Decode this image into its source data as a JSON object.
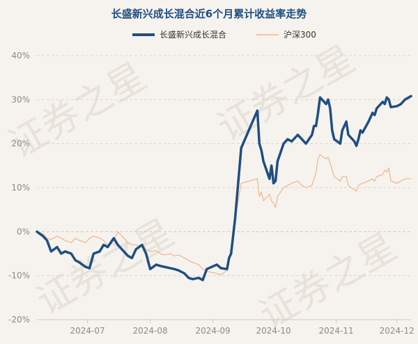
{
  "chart_data": {
    "type": "line",
    "title": "长盛新兴成长混合近6个月累计收益率走势",
    "watermark": "证券之星",
    "ylim": [
      -20,
      40
    ],
    "yticks": [
      -20,
      -10,
      0,
      10,
      20,
      30,
      40
    ],
    "ytick_labels": [
      "-20%",
      "-10%",
      "0%",
      "10%",
      "20%",
      "30%",
      "40%"
    ],
    "xlim": [
      "2024-06-21",
      "2024-12-23"
    ],
    "xticks": [
      "2024-07",
      "2024-08",
      "2024-09",
      "2024-10",
      "2024-11",
      "2024-12"
    ],
    "grid": true,
    "legend": "top",
    "series": [
      {
        "name": "长盛新兴成长混合",
        "color": "#1f4e82",
        "width": 3.5,
        "points": [
          [
            "2024-06-21",
            0
          ],
          [
            "2024-06-24",
            -1
          ],
          [
            "2024-06-26",
            -2
          ],
          [
            "2024-06-28",
            -4.5
          ],
          [
            "2024-07-01",
            -3.5
          ],
          [
            "2024-07-03",
            -5
          ],
          [
            "2024-07-05",
            -4.5
          ],
          [
            "2024-07-08",
            -5
          ],
          [
            "2024-07-10",
            -6.5
          ],
          [
            "2024-07-12",
            -7
          ],
          [
            "2024-07-15",
            -8
          ],
          [
            "2024-07-17",
            -8.3
          ],
          [
            "2024-07-19",
            -5
          ],
          [
            "2024-07-22",
            -4.5
          ],
          [
            "2024-07-24",
            -3
          ],
          [
            "2024-07-26",
            -3.5
          ],
          [
            "2024-07-29",
            -1.5
          ],
          [
            "2024-07-31",
            -3
          ],
          [
            "2024-08-02",
            -4
          ],
          [
            "2024-08-05",
            -5.5
          ],
          [
            "2024-08-07",
            -6
          ],
          [
            "2024-08-09",
            -4
          ],
          [
            "2024-08-12",
            -3
          ],
          [
            "2024-08-14",
            -5
          ],
          [
            "2024-08-16",
            -8.5
          ],
          [
            "2024-08-19",
            -7.5
          ],
          [
            "2024-08-21",
            -7.8
          ],
          [
            "2024-08-23",
            -8
          ],
          [
            "2024-08-26",
            -8.3
          ],
          [
            "2024-08-28",
            -8.5
          ],
          [
            "2024-08-30",
            -8.8
          ],
          [
            "2024-09-02",
            -9.5
          ],
          [
            "2024-09-04",
            -10.5
          ],
          [
            "2024-09-06",
            -10.8
          ],
          [
            "2024-09-09",
            -10.5
          ],
          [
            "2024-09-11",
            -11
          ],
          [
            "2024-09-13",
            -8.5
          ],
          [
            "2024-09-18",
            -7.5
          ],
          [
            "2024-09-20",
            -8.3
          ],
          [
            "2024-09-23",
            -8.5
          ],
          [
            "2024-09-24",
            -6
          ],
          [
            "2024-09-25",
            -5
          ],
          [
            "2024-09-26",
            -1
          ],
          [
            "2024-09-27",
            3
          ],
          [
            "2024-09-30",
            19
          ],
          [
            "2024-10-08",
            27.5
          ],
          [
            "2024-10-09",
            20
          ],
          [
            "2024-10-10",
            18.5
          ],
          [
            "2024-10-11",
            16
          ],
          [
            "2024-10-14",
            12
          ],
          [
            "2024-10-15",
            15
          ],
          [
            "2024-10-16",
            11
          ],
          [
            "2024-10-17",
            11.5
          ],
          [
            "2024-10-18",
            16
          ],
          [
            "2024-10-21",
            20
          ],
          [
            "2024-10-23",
            21
          ],
          [
            "2024-10-25",
            20.5
          ],
          [
            "2024-10-28",
            22
          ],
          [
            "2024-10-30",
            21
          ],
          [
            "2024-11-01",
            20
          ],
          [
            "2024-11-04",
            22
          ],
          [
            "2024-11-05",
            24
          ],
          [
            "2024-11-06",
            24
          ],
          [
            "2024-11-07",
            27
          ],
          [
            "2024-11-08",
            30.5
          ],
          [
            "2024-11-11",
            29
          ],
          [
            "2024-11-12",
            30
          ],
          [
            "2024-11-13",
            28
          ],
          [
            "2024-11-14",
            23
          ],
          [
            "2024-11-15",
            21
          ],
          [
            "2024-11-18",
            20
          ],
          [
            "2024-11-19",
            23
          ],
          [
            "2024-11-21",
            25
          ],
          [
            "2024-11-22",
            22
          ],
          [
            "2024-11-25",
            20.5
          ],
          [
            "2024-11-26",
            19.5
          ],
          [
            "2024-11-27",
            21
          ],
          [
            "2024-11-28",
            23
          ],
          [
            "2024-11-29",
            22.5
          ],
          [
            "2024-12-02",
            25
          ],
          [
            "2024-12-04",
            27
          ],
          [
            "2024-12-05",
            26.5
          ],
          [
            "2024-12-06",
            28
          ],
          [
            "2024-12-09",
            29.5
          ],
          [
            "2024-12-10",
            29
          ],
          [
            "2024-12-11",
            30.5
          ],
          [
            "2024-12-12",
            30
          ],
          [
            "2024-12-13",
            28.3
          ],
          [
            "2024-12-16",
            28.5
          ],
          [
            "2024-12-18",
            29
          ],
          [
            "2024-12-20",
            30
          ],
          [
            "2024-12-23",
            30.8
          ]
        ]
      },
      {
        "name": "沪深300",
        "color": "#f2b48a",
        "width": 1.2,
        "points": [
          [
            "2024-06-21",
            0
          ],
          [
            "2024-06-24",
            -0.5
          ],
          [
            "2024-06-26",
            -1.5
          ],
          [
            "2024-06-28",
            -1.8
          ],
          [
            "2024-07-01",
            -1
          ],
          [
            "2024-07-03",
            -1.5
          ],
          [
            "2024-07-05",
            -2
          ],
          [
            "2024-07-08",
            -2.5
          ],
          [
            "2024-07-10",
            -1.5
          ],
          [
            "2024-07-12",
            -2
          ],
          [
            "2024-07-15",
            -2.5
          ],
          [
            "2024-07-17",
            -1.5
          ],
          [
            "2024-07-19",
            -1
          ],
          [
            "2024-07-22",
            -1.5
          ],
          [
            "2024-07-24",
            -2
          ],
          [
            "2024-07-26",
            -3
          ],
          [
            "2024-07-29",
            -2
          ],
          [
            "2024-07-31",
            0
          ],
          [
            "2024-08-02",
            -1
          ],
          [
            "2024-08-05",
            -2.5
          ],
          [
            "2024-08-07",
            -3
          ],
          [
            "2024-08-09",
            -3
          ],
          [
            "2024-08-12",
            -3.5
          ],
          [
            "2024-08-14",
            -4
          ],
          [
            "2024-08-16",
            -4.5
          ],
          [
            "2024-08-19",
            -4.3
          ],
          [
            "2024-08-21",
            -5
          ],
          [
            "2024-08-23",
            -5.3
          ],
          [
            "2024-08-26",
            -5
          ],
          [
            "2024-08-28",
            -5.5
          ],
          [
            "2024-08-30",
            -5.3
          ],
          [
            "2024-09-02",
            -6
          ],
          [
            "2024-09-04",
            -6.5
          ],
          [
            "2024-09-06",
            -7
          ],
          [
            "2024-09-09",
            -7.5
          ],
          [
            "2024-09-11",
            -8.5
          ],
          [
            "2024-09-13",
            -9
          ],
          [
            "2024-09-18",
            -9.5
          ],
          [
            "2024-09-20",
            -9.8
          ],
          [
            "2024-09-23",
            -8.8
          ],
          [
            "2024-09-24",
            -6
          ],
          [
            "2024-09-25",
            -4
          ],
          [
            "2024-09-26",
            -2
          ],
          [
            "2024-09-27",
            3
          ],
          [
            "2024-09-30",
            11
          ],
          [
            "2024-10-08",
            12
          ],
          [
            "2024-10-09",
            8
          ],
          [
            "2024-10-10",
            9
          ],
          [
            "2024-10-11",
            7
          ],
          [
            "2024-10-14",
            8.5
          ],
          [
            "2024-10-15",
            7
          ],
          [
            "2024-10-16",
            6.5
          ],
          [
            "2024-10-17",
            5.5
          ],
          [
            "2024-10-18",
            8
          ],
          [
            "2024-10-21",
            10
          ],
          [
            "2024-10-23",
            10.5
          ],
          [
            "2024-10-25",
            11
          ],
          [
            "2024-10-28",
            11.5
          ],
          [
            "2024-10-30",
            10.5
          ],
          [
            "2024-11-01",
            10
          ],
          [
            "2024-11-04",
            10.5
          ],
          [
            "2024-11-05",
            12
          ],
          [
            "2024-11-06",
            13.5
          ],
          [
            "2024-11-07",
            16.5
          ],
          [
            "2024-11-08",
            17.5
          ],
          [
            "2024-11-11",
            16.5
          ],
          [
            "2024-11-12",
            17
          ],
          [
            "2024-11-13",
            15.5
          ],
          [
            "2024-11-14",
            14
          ],
          [
            "2024-11-15",
            12.5
          ],
          [
            "2024-11-18",
            11.5
          ],
          [
            "2024-11-19",
            12.5
          ],
          [
            "2024-11-21",
            12.5
          ],
          [
            "2024-11-22",
            10.5
          ],
          [
            "2024-11-25",
            9.5
          ],
          [
            "2024-11-26",
            9.2
          ],
          [
            "2024-11-27",
            10.5
          ],
          [
            "2024-11-28",
            10.8
          ],
          [
            "2024-11-29",
            11
          ],
          [
            "2024-12-02",
            11.5
          ],
          [
            "2024-12-04",
            12
          ],
          [
            "2024-12-05",
            11.5
          ],
          [
            "2024-12-06",
            12.5
          ],
          [
            "2024-12-09",
            13
          ],
          [
            "2024-12-10",
            14
          ],
          [
            "2024-12-11",
            13.5
          ],
          [
            "2024-12-12",
            14.5
          ],
          [
            "2024-12-13",
            11.5
          ],
          [
            "2024-12-16",
            11
          ],
          [
            "2024-12-18",
            11.5
          ],
          [
            "2024-12-20",
            12
          ],
          [
            "2024-12-23",
            12
          ]
        ]
      }
    ]
  }
}
